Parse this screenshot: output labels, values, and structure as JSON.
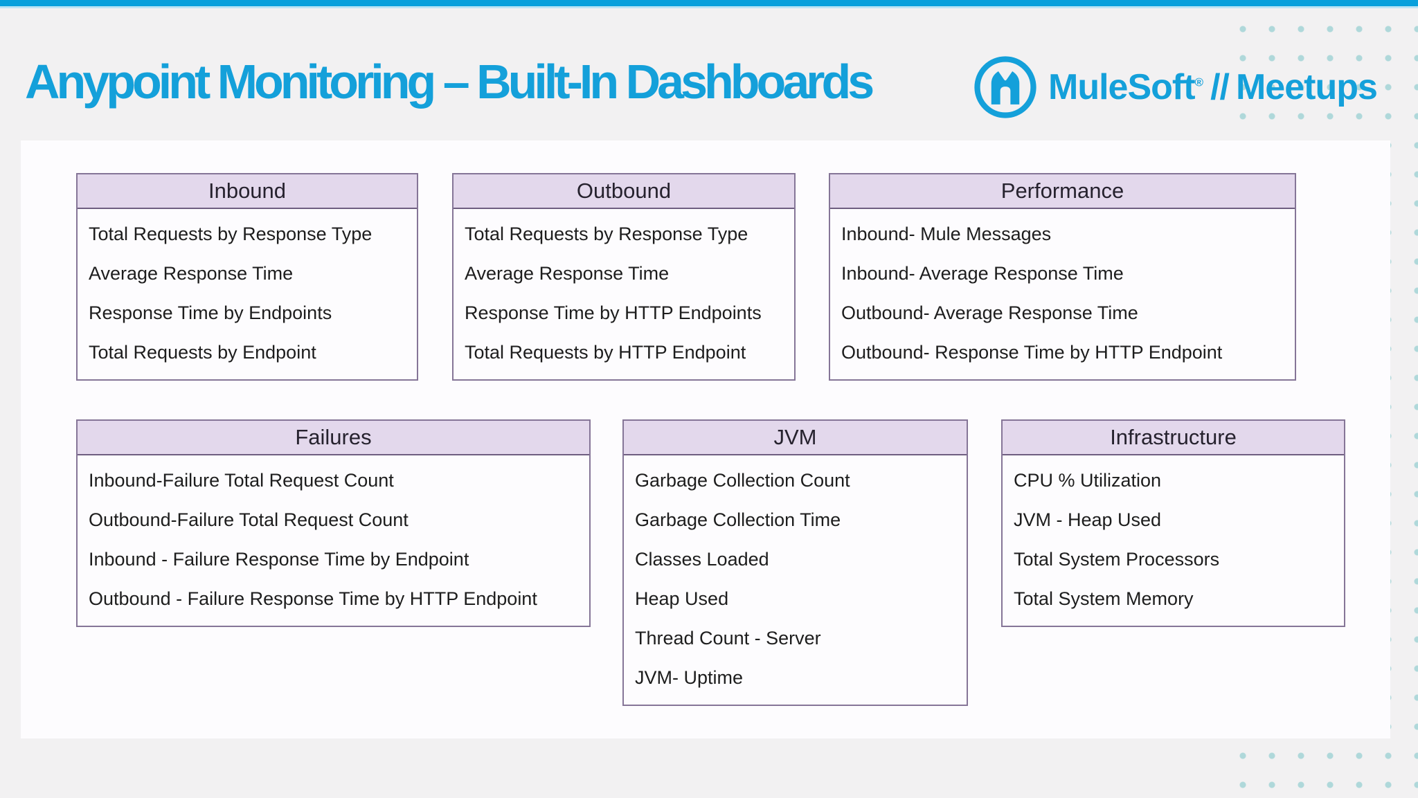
{
  "page": {
    "title": "Anypoint Monitoring – Built-In Dashboards"
  },
  "logo": {
    "brand": "MuleSoft",
    "registered": "®",
    "separator": "//",
    "suffix": "Meetups"
  },
  "theme": {
    "accent_blue": "#14a0da",
    "topbar_blue": "#08a0dc",
    "header_lavender": "#e3d8ec",
    "border_purple": "#857597",
    "dot_teal": "#afd8da"
  },
  "tables": [
    {
      "title": "Inbound",
      "items": [
        "Total Requests by Response Type",
        "Average Response Time",
        "Response Time by Endpoints",
        "Total Requests by Endpoint"
      ]
    },
    {
      "title": "Outbound",
      "items": [
        "Total Requests by Response Type",
        "Average Response Time",
        "Response Time by HTTP Endpoints",
        "Total Requests by HTTP Endpoint"
      ]
    },
    {
      "title": "Performance",
      "items": [
        "Inbound- Mule Messages",
        "Inbound- Average Response Time",
        "Outbound- Average Response Time",
        "Outbound- Response Time by HTTP Endpoint"
      ]
    },
    {
      "title": "Failures",
      "items": [
        "Inbound-Failure Total Request Count",
        "Outbound-Failure Total Request Count",
        "Inbound - Failure Response Time by Endpoint",
        "Outbound - Failure Response Time by HTTP Endpoint"
      ]
    },
    {
      "title": "JVM",
      "items": [
        "Garbage Collection Count",
        "Garbage Collection Time",
        "Classes Loaded",
        "Heap Used",
        "Thread Count - Server",
        "JVM- Uptime"
      ]
    },
    {
      "title": "Infrastructure",
      "items": [
        "CPU % Utilization",
        "JVM - Heap Used",
        "Total System Processors",
        "Total System Memory"
      ]
    }
  ]
}
